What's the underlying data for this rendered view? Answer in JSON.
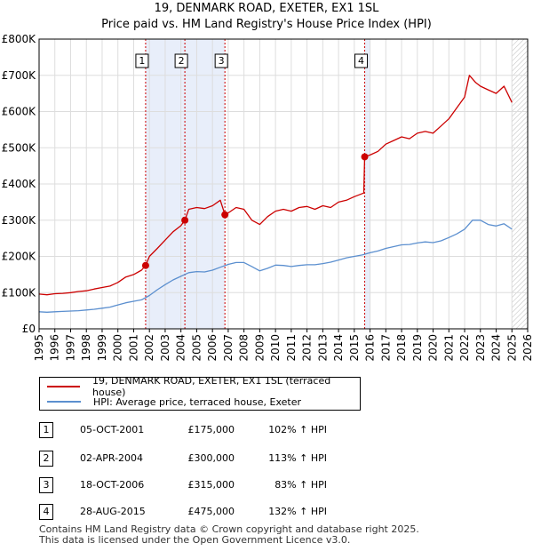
{
  "title": {
    "line1": "19, DENMARK ROAD, EXETER, EX1 1SL",
    "line2": "Price paid vs. HM Land Registry's House Price Index (HPI)"
  },
  "colors": {
    "price_line": "#cc0000",
    "hpi_line": "#5b8fcf",
    "highlight": "#e8eefa",
    "grid": "#dddddd",
    "vline": "#cc0000"
  },
  "legend": {
    "price_label": "19, DENMARK ROAD, EXETER, EX1 1SL (terraced house)",
    "hpi_label": "HPI: Average price, terraced house, Exeter"
  },
  "transactions": [
    {
      "num": "1",
      "date": "05-OCT-2001",
      "price": "£175,000",
      "hpi": "102% ↑ HPI"
    },
    {
      "num": "2",
      "date": "02-APR-2004",
      "price": "£300,000",
      "hpi": "113% ↑ HPI"
    },
    {
      "num": "3",
      "date": "18-OCT-2006",
      "price": "£315,000",
      "hpi": "83% ↑ HPI"
    },
    {
      "num": "4",
      "date": "28-AUG-2015",
      "price": "£475,000",
      "hpi": "132% ↑ HPI"
    }
  ],
  "footer": {
    "line1": "Contains HM Land Registry data © Crown copyright and database right 2025.",
    "line2": "This data is licensed under the Open Government Licence v3.0."
  },
  "chart_data": {
    "type": "line",
    "xlim": [
      1995,
      2026
    ],
    "ylim": [
      0,
      800000
    ],
    "y_ticks": [
      0,
      100000,
      200000,
      300000,
      400000,
      500000,
      600000,
      700000,
      800000
    ],
    "y_tick_labels": [
      "£0",
      "£100K",
      "£200K",
      "£300K",
      "£400K",
      "£500K",
      "£600K",
      "£700K",
      "£800K"
    ],
    "x_ticks": [
      1995,
      1996,
      1997,
      1998,
      1999,
      2000,
      2001,
      2002,
      2003,
      2004,
      2005,
      2006,
      2007,
      2008,
      2009,
      2010,
      2011,
      2012,
      2013,
      2014,
      2015,
      2016,
      2017,
      2018,
      2019,
      2020,
      2021,
      2022,
      2023,
      2024,
      2025,
      2026
    ],
    "x_tick_labels": [
      "1995",
      "1996",
      "1997",
      "1998",
      "1999",
      "2000",
      "2001",
      "2002",
      "2003",
      "2004",
      "2005",
      "2006",
      "2007",
      "2008",
      "2009",
      "2010",
      "2011",
      "2012",
      "2013",
      "2014",
      "2015",
      "2016",
      "2017",
      "2018",
      "2019",
      "2020",
      "2021",
      "2022",
      "2023",
      "2024",
      "2025",
      "2026"
    ],
    "grid": true,
    "highlight_ranges": [
      [
        2001.76,
        2006.79
      ],
      [
        2015.66,
        2016.0
      ]
    ],
    "future_hatch_from": 2025.0,
    "series": [
      {
        "name": "19, DENMARK ROAD, EXETER, EX1 1SL (terraced house)",
        "x": [
          1995.0,
          1995.5,
          1996.0,
          1996.5,
          1997.0,
          1997.5,
          1998.0,
          1998.5,
          1999.0,
          1999.5,
          2000.0,
          2000.5,
          2001.0,
          2001.5,
          2001.76,
          2002.0,
          2002.5,
          2003.0,
          2003.5,
          2004.0,
          2004.25,
          2004.5,
          2005.0,
          2005.5,
          2006.0,
          2006.5,
          2006.79,
          2007.0,
          2007.5,
          2008.0,
          2008.5,
          2009.0,
          2009.5,
          2010.0,
          2010.5,
          2011.0,
          2011.5,
          2012.0,
          2012.5,
          2013.0,
          2013.5,
          2014.0,
          2014.5,
          2015.0,
          2015.6,
          2015.66,
          2016.0,
          2016.5,
          2017.0,
          2017.5,
          2018.0,
          2018.5,
          2019.0,
          2019.5,
          2020.0,
          2020.5,
          2021.0,
          2021.5,
          2022.0,
          2022.3,
          2022.7,
          2023.0,
          2023.5,
          2024.0,
          2024.5,
          2025.0
        ],
        "y": [
          96000,
          94000,
          97000,
          98000,
          100000,
          103000,
          105000,
          110000,
          114000,
          118000,
          128000,
          143000,
          150000,
          162000,
          175000,
          200000,
          222000,
          245000,
          268000,
          285000,
          300000,
          330000,
          335000,
          332000,
          340000,
          355000,
          315000,
          320000,
          335000,
          330000,
          300000,
          288000,
          310000,
          325000,
          330000,
          325000,
          335000,
          338000,
          330000,
          340000,
          335000,
          350000,
          355000,
          365000,
          375000,
          475000,
          480000,
          490000,
          510000,
          520000,
          530000,
          525000,
          540000,
          545000,
          540000,
          560000,
          580000,
          610000,
          640000,
          700000,
          680000,
          670000,
          660000,
          650000,
          670000,
          625000
        ]
      },
      {
        "name": "HPI: Average price, terraced house, Exeter",
        "x": [
          1995.0,
          1995.5,
          1996.0,
          1996.5,
          1997.0,
          1997.5,
          1998.0,
          1998.5,
          1999.0,
          1999.5,
          2000.0,
          2000.5,
          2001.0,
          2001.5,
          2002.0,
          2002.5,
          2003.0,
          2003.5,
          2004.0,
          2004.5,
          2005.0,
          2005.5,
          2006.0,
          2006.5,
          2007.0,
          2007.5,
          2008.0,
          2008.5,
          2009.0,
          2009.5,
          2010.0,
          2010.5,
          2011.0,
          2011.5,
          2012.0,
          2012.5,
          2013.0,
          2013.5,
          2014.0,
          2014.5,
          2015.0,
          2015.5,
          2016.0,
          2016.5,
          2017.0,
          2017.5,
          2018.0,
          2018.5,
          2019.0,
          2019.5,
          2020.0,
          2020.5,
          2021.0,
          2021.5,
          2022.0,
          2022.5,
          2023.0,
          2023.5,
          2024.0,
          2024.5,
          2025.0
        ],
        "y": [
          47000,
          46000,
          47000,
          48000,
          49000,
          50000,
          52000,
          54000,
          57000,
          60000,
          66000,
          72000,
          76000,
          80000,
          92000,
          108000,
          122000,
          135000,
          145000,
          155000,
          158000,
          157000,
          162000,
          170000,
          178000,
          183000,
          183000,
          172000,
          160000,
          167000,
          176000,
          175000,
          172000,
          175000,
          177000,
          177000,
          180000,
          184000,
          190000,
          196000,
          200000,
          204000,
          210000,
          215000,
          222000,
          227000,
          232000,
          233000,
          237000,
          240000,
          238000,
          243000,
          252000,
          262000,
          275000,
          300000,
          300000,
          288000,
          284000,
          290000,
          275000
        ]
      }
    ],
    "markers": [
      {
        "label": "1",
        "x": 2001.76,
        "y": 175000
      },
      {
        "label": "2",
        "x": 2004.25,
        "y": 300000
      },
      {
        "label": "3",
        "x": 2006.79,
        "y": 315000
      },
      {
        "label": "4",
        "x": 2015.66,
        "y": 475000
      }
    ]
  }
}
